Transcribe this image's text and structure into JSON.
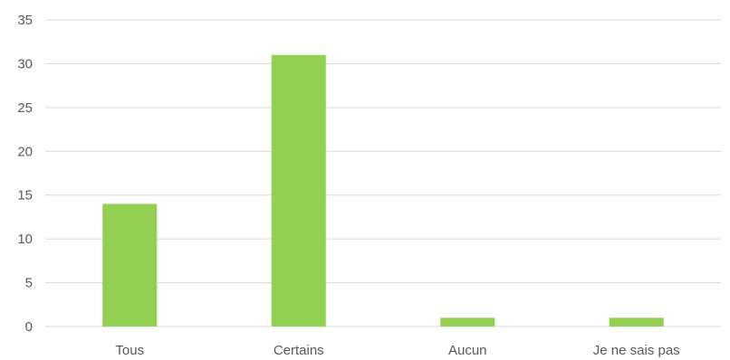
{
  "chart_data": {
    "type": "bar",
    "categories": [
      "Tous",
      "Certains",
      "Aucun",
      "Je ne sais pas"
    ],
    "values": [
      14,
      31,
      1,
      1
    ],
    "title": "",
    "xlabel": "",
    "ylabel": "",
    "ylim": [
      0,
      35
    ],
    "yticks": [
      "0",
      "5",
      "10",
      "15",
      "20",
      "25",
      "30",
      "35"
    ],
    "grid": true,
    "legend": "none",
    "bar_color": "#92d050"
  }
}
